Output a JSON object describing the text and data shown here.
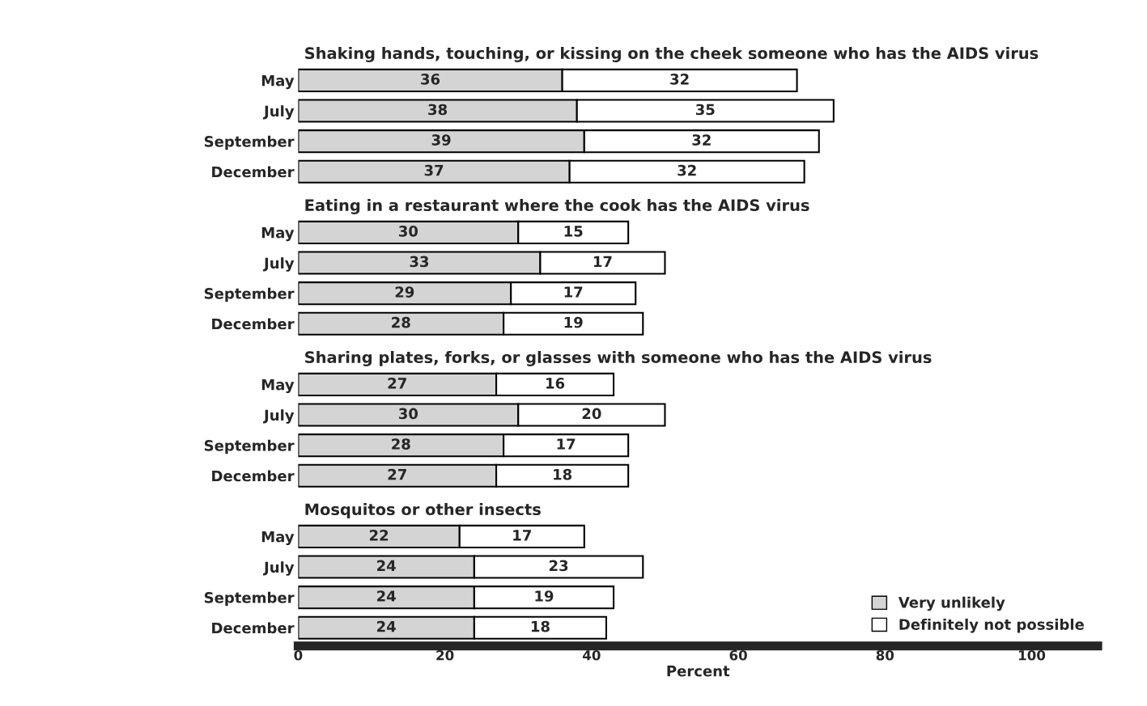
{
  "chart_data": {
    "type": "bar",
    "orientation": "horizontal",
    "stacked": true,
    "xlabel": "Percent",
    "categories": [
      "May",
      "July",
      "September",
      "December",
      "May",
      "July",
      "September",
      "December",
      "May",
      "July",
      "September",
      "December",
      "May",
      "July",
      "September",
      "December"
    ],
    "annotations": [
      "Shaking hands, touching, or kissing on the cheek someone who has the AIDS virus",
      "Eating in a restaurant where the cook has the AIDS virus",
      "Sharing plates, forks, or glasses with someone who has the AIDS virus",
      "Mosquitos or other insects"
    ],
    "series": [
      {
        "name": "Very unlikely",
        "color": "#d4d4d4",
        "values": [
          36,
          38,
          39,
          37,
          30,
          33,
          29,
          28,
          27,
          30,
          28,
          27,
          22,
          24,
          24,
          24
        ]
      },
      {
        "name": "Definitely not possible",
        "color": "#ffffff",
        "values": [
          32,
          35,
          32,
          32,
          15,
          17,
          17,
          19,
          16,
          20,
          17,
          18,
          17,
          23,
          19,
          18
        ]
      }
    ],
    "xlim": [
      0,
      109
    ],
    "xticks": [
      0,
      20,
      40,
      60,
      80,
      100
    ],
    "data_labels": true,
    "legend": "bottom right"
  }
}
